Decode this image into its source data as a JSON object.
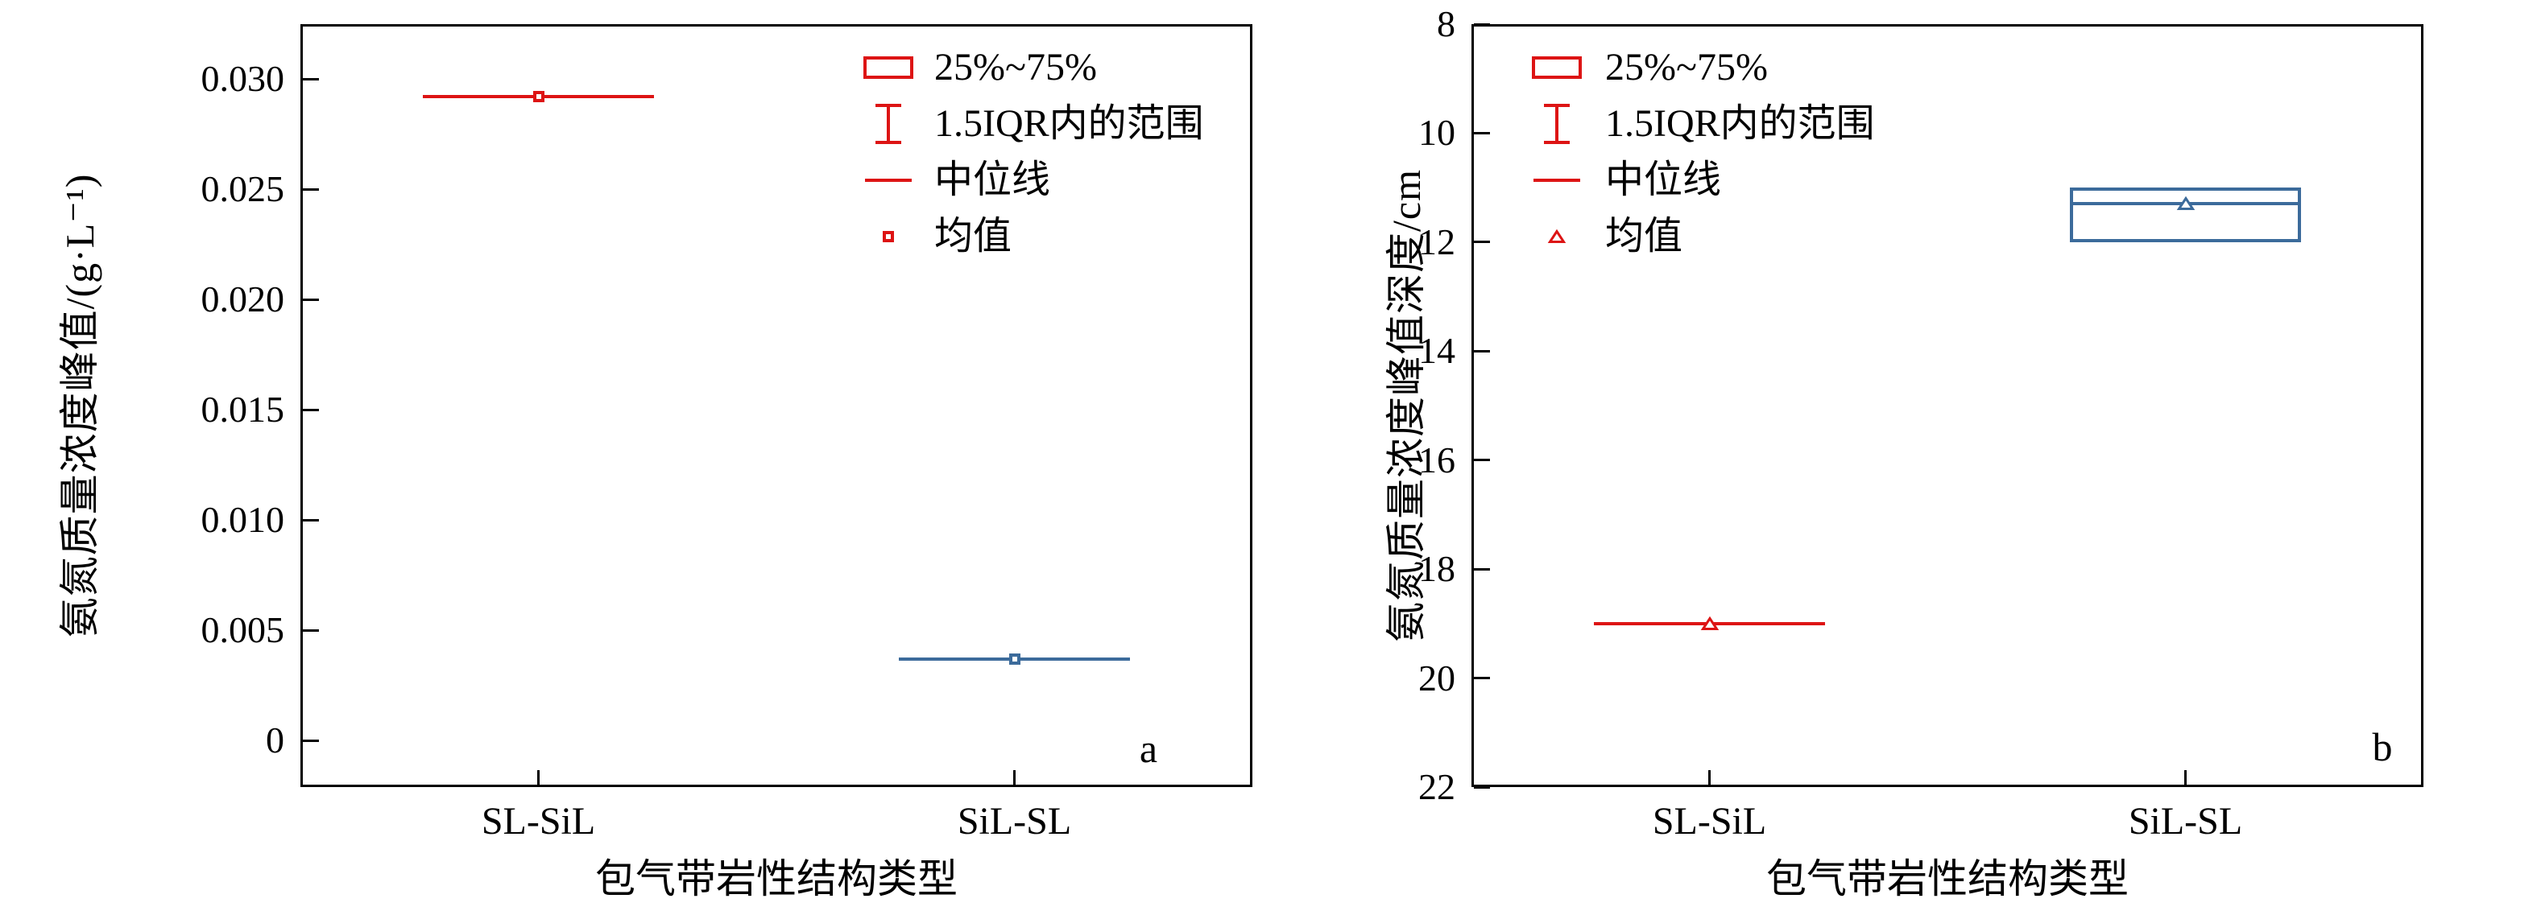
{
  "colors": {
    "red": "#dd1414",
    "blue": "#3c6b9b",
    "axis": "#000000",
    "background": "#ffffff"
  },
  "chart_data": [
    {
      "type": "box",
      "panel_label": "a",
      "xlabel": "包气带岩性结构类型",
      "ylabel": "氨氮质量浓度峰值/(g·L⁻¹)",
      "categories": [
        "SL-SiL",
        "SiL-SL"
      ],
      "y_axis": {
        "min": -0.0021,
        "max": 0.0325,
        "inverted": false,
        "ticks": [
          {
            "value": 0.03,
            "label": "0.030"
          },
          {
            "value": 0.025,
            "label": "0.025"
          },
          {
            "value": 0.02,
            "label": "0.020"
          },
          {
            "value": 0.015,
            "label": "0.015"
          },
          {
            "value": 0.01,
            "label": "0.010"
          },
          {
            "value": 0.005,
            "label": "0.005"
          },
          {
            "value": 0,
            "label": "0"
          }
        ]
      },
      "mean_marker": "square",
      "legend": [
        {
          "symbol": "box-outline",
          "label": "25%~75%"
        },
        {
          "symbol": "whisker",
          "label": "1.5IQR内的范围"
        },
        {
          "symbol": "median-line",
          "label": "中位线"
        },
        {
          "symbol": "mean-marker",
          "label": "均值"
        }
      ],
      "series": [
        {
          "category": "SL-SiL",
          "color_key": "red",
          "q1": 0.0292,
          "median": 0.0292,
          "q3": 0.0292,
          "mean": 0.0292
        },
        {
          "category": "SiL-SL",
          "color_key": "blue",
          "q1": 0.0037,
          "median": 0.0037,
          "q3": 0.0037,
          "mean": 0.0037
        }
      ]
    },
    {
      "type": "box",
      "panel_label": "b",
      "xlabel": "包气带岩性结构类型",
      "ylabel": "氨氮质量浓度峰值深度/cm",
      "categories": [
        "SL-SiL",
        "SiL-SL"
      ],
      "y_axis": {
        "min": 8,
        "max": 22,
        "inverted": true,
        "ticks": [
          {
            "value": 8,
            "label": "8"
          },
          {
            "value": 10,
            "label": "10"
          },
          {
            "value": 12,
            "label": "12"
          },
          {
            "value": 14,
            "label": "14"
          },
          {
            "value": 16,
            "label": "16"
          },
          {
            "value": 18,
            "label": "18"
          },
          {
            "value": 20,
            "label": "20"
          },
          {
            "value": 22,
            "label": "22"
          }
        ]
      },
      "mean_marker": "triangle",
      "legend": [
        {
          "symbol": "box-outline",
          "label": "25%~75%"
        },
        {
          "symbol": "whisker",
          "label": "1.5IQR内的范围"
        },
        {
          "symbol": "median-line",
          "label": "中位线"
        },
        {
          "symbol": "mean-marker",
          "label": "均值"
        }
      ],
      "series": [
        {
          "category": "SL-SiL",
          "color_key": "red",
          "q1": 19.0,
          "median": 19.0,
          "q3": 19.0,
          "mean": 19.0
        },
        {
          "category": "SiL-SL",
          "color_key": "blue",
          "q1": 11.0,
          "median": 11.3,
          "q3": 12.0,
          "mean": 11.3
        }
      ]
    }
  ]
}
